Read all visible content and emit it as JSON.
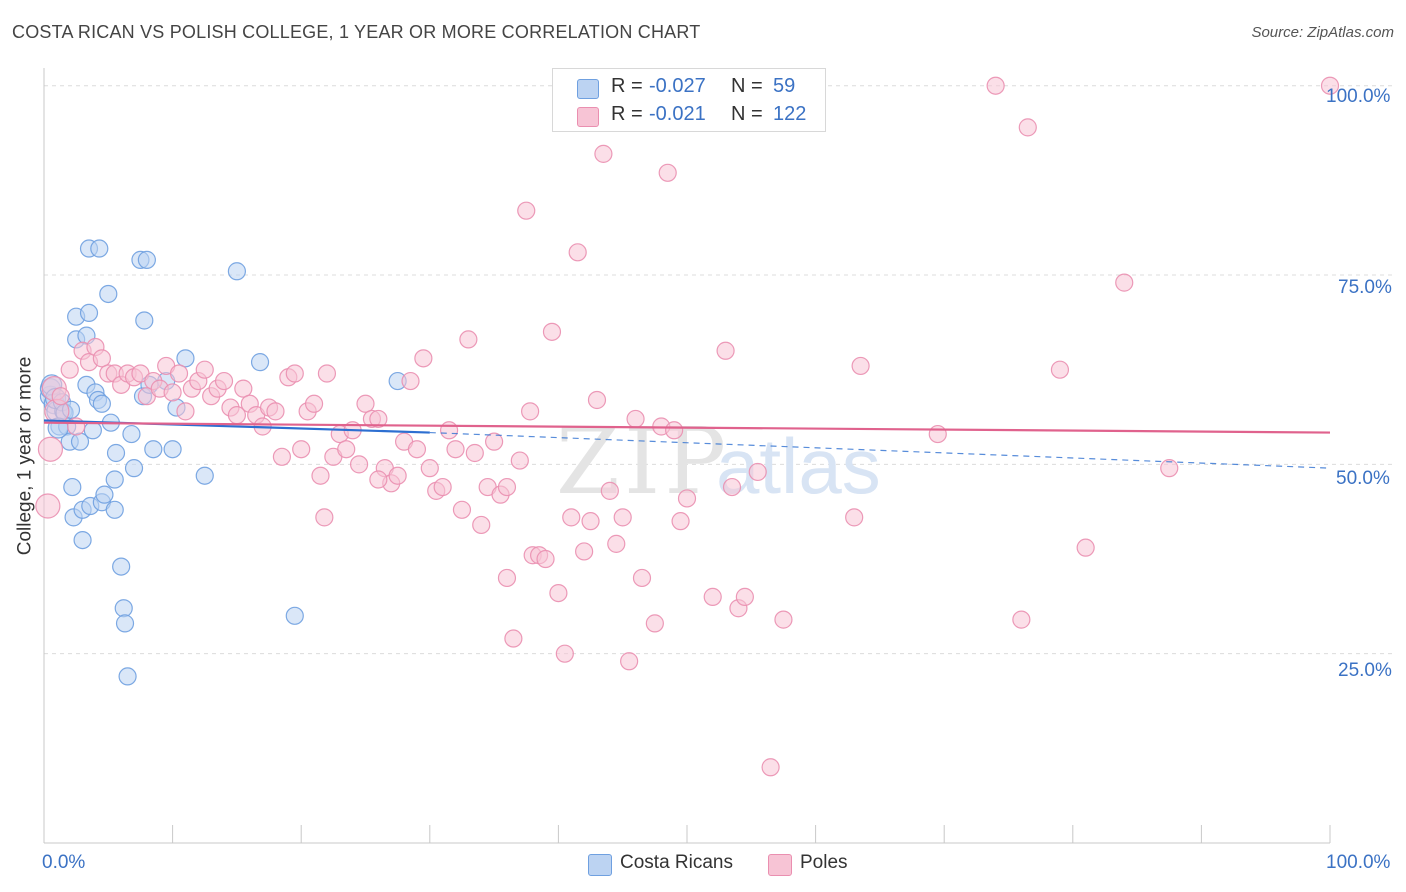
{
  "header": {
    "title": "COSTA RICAN VS POLISH COLLEGE, 1 YEAR OR MORE CORRELATION CHART",
    "source": "Source: ZipAtlas.com"
  },
  "legend": {
    "rows": [
      {
        "r_label": "R =",
        "r_value": "-0.027",
        "n_label": "N =",
        "n_value": "59"
      },
      {
        "r_label": "R =",
        "r_value": "-0.021",
        "n_label": "N =",
        "n_value": "122"
      }
    ]
  },
  "axis_labels": {
    "y_title": "College, 1 year or more",
    "x_min": "0.0%",
    "x_max": "100.0%",
    "y_ticks": [
      "100.0%",
      "75.0%",
      "50.0%",
      "25.0%"
    ]
  },
  "watermark": {
    "zip": "ZIP",
    "atlas": "atlas"
  },
  "colors": {
    "blue": "#6fa0e0",
    "blue_fill": "#bcd3f2",
    "blue_line": "#2d6fd1",
    "pink": "#ea8fb0",
    "pink_fill": "#f7c4d5",
    "pink_line": "#e0628d",
    "tick_text": "#3b72c4"
  },
  "chart_data": {
    "type": "scatter",
    "title": "COSTA RICAN VS POLISH COLLEGE, 1 YEAR OR MORE CORRELATION CHART",
    "xlabel": "",
    "ylabel": "College, 1 year or more",
    "xlim": [
      0,
      100
    ],
    "ylim": [
      0,
      102
    ],
    "x_ticks": [
      "0.0%",
      "100.0%"
    ],
    "y_ticks": [
      25,
      50,
      75,
      100
    ],
    "grid": true,
    "series": [
      {
        "name": "Costa Ricans",
        "r": -0.027,
        "n": 59,
        "trend": {
          "x": [
            0,
            30
          ],
          "y": [
            55.8,
            54.2
          ],
          "dashed_to": [
            100,
            49.5
          ]
        },
        "points": [
          [
            0.5,
            59
          ],
          [
            0.5,
            60
          ],
          [
            0.8,
            58
          ],
          [
            1,
            57
          ],
          [
            1.2,
            55
          ],
          [
            1.5,
            57
          ],
          [
            1.8,
            55
          ],
          [
            2,
            53
          ],
          [
            2.2,
            47
          ],
          [
            2.3,
            43
          ],
          [
            2.5,
            66.5
          ],
          [
            2.5,
            69.5
          ],
          [
            2.8,
            53
          ],
          [
            3,
            40
          ],
          [
            3,
            44
          ],
          [
            3.3,
            60.5
          ],
          [
            3.3,
            67
          ],
          [
            3.5,
            70
          ],
          [
            3.5,
            78.5
          ],
          [
            3.6,
            44.5
          ],
          [
            3.8,
            54.5
          ],
          [
            4,
            59.5
          ],
          [
            4.2,
            58.5
          ],
          [
            4.3,
            78.5
          ],
          [
            4.5,
            45
          ],
          [
            4.5,
            58
          ],
          [
            4.7,
            46
          ],
          [
            5,
            72.5
          ],
          [
            5.2,
            55.5
          ],
          [
            5.5,
            48
          ],
          [
            5.5,
            44
          ],
          [
            5.6,
            51.5
          ],
          [
            6,
            36.5
          ],
          [
            6.2,
            31
          ],
          [
            6.3,
            29
          ],
          [
            6.5,
            22
          ],
          [
            6.8,
            54
          ],
          [
            7,
            49.5
          ],
          [
            7.5,
            77
          ],
          [
            7.8,
            69
          ],
          [
            7.7,
            59
          ],
          [
            8,
            77
          ],
          [
            8.2,
            60.5
          ],
          [
            8.5,
            52
          ],
          [
            9.5,
            61
          ],
          [
            10,
            52
          ],
          [
            10.3,
            57.5
          ],
          [
            11,
            64
          ],
          [
            12.5,
            48.5
          ],
          [
            15,
            75.5
          ],
          [
            16.8,
            63.5
          ],
          [
            19.5,
            30
          ],
          [
            27.5,
            61
          ],
          [
            0.6,
            60.5
          ],
          [
            0.9,
            58.7
          ],
          [
            1.4,
            58.2
          ],
          [
            1.6,
            56.8
          ],
          [
            2.1,
            57.2
          ],
          [
            1.1,
            54.8
          ]
        ]
      },
      {
        "name": "Poles",
        "r": -0.021,
        "n": 122,
        "trend": {
          "x": [
            0,
            100
          ],
          "y": [
            55.5,
            54.2
          ]
        },
        "points": [
          [
            0.3,
            44.5
          ],
          [
            0.5,
            52
          ],
          [
            0.8,
            60
          ],
          [
            1,
            57
          ],
          [
            1.3,
            59
          ],
          [
            2,
            62.5
          ],
          [
            2.5,
            55
          ],
          [
            3,
            65
          ],
          [
            3.5,
            63.5
          ],
          [
            4,
            65.5
          ],
          [
            4.5,
            64
          ],
          [
            5,
            62
          ],
          [
            5.5,
            62
          ],
          [
            6,
            60.5
          ],
          [
            6.5,
            62
          ],
          [
            7,
            61.5
          ],
          [
            7.5,
            62
          ],
          [
            8,
            59
          ],
          [
            8.5,
            61
          ],
          [
            9,
            60
          ],
          [
            9.5,
            63
          ],
          [
            10,
            59.5
          ],
          [
            10.5,
            62
          ],
          [
            11,
            57
          ],
          [
            11.5,
            60
          ],
          [
            12,
            61
          ],
          [
            12.5,
            62.5
          ],
          [
            13,
            59
          ],
          [
            13.5,
            60
          ],
          [
            14,
            61
          ],
          [
            14.5,
            57.5
          ],
          [
            15,
            56.5
          ],
          [
            15.5,
            60
          ],
          [
            16,
            58
          ],
          [
            16.5,
            56.5
          ],
          [
            17,
            55
          ],
          [
            17.5,
            57.5
          ],
          [
            18,
            57
          ],
          [
            18.5,
            51
          ],
          [
            19,
            61.5
          ],
          [
            19.5,
            62
          ],
          [
            20,
            52
          ],
          [
            20.5,
            57
          ],
          [
            21,
            58
          ],
          [
            21.5,
            48.5
          ],
          [
            21.8,
            43
          ],
          [
            22,
            62
          ],
          [
            22.5,
            51
          ],
          [
            23,
            54
          ],
          [
            23.5,
            52
          ],
          [
            24,
            54.5
          ],
          [
            24.5,
            50
          ],
          [
            25,
            58
          ],
          [
            25.5,
            56
          ],
          [
            26,
            56
          ],
          [
            26.5,
            49.5
          ],
          [
            27,
            47.5
          ],
          [
            27.5,
            48.5
          ],
          [
            28,
            53
          ],
          [
            28.5,
            61
          ],
          [
            29,
            52
          ],
          [
            29.5,
            64
          ],
          [
            30,
            49.5
          ],
          [
            30.5,
            46.5
          ],
          [
            31,
            47
          ],
          [
            31.5,
            54.5
          ],
          [
            32,
            52
          ],
          [
            32.5,
            44
          ],
          [
            33,
            66.5
          ],
          [
            33.5,
            51.5
          ],
          [
            34,
            42
          ],
          [
            34.5,
            47
          ],
          [
            35,
            53
          ],
          [
            35.5,
            46
          ],
          [
            36,
            35
          ],
          [
            36.5,
            27
          ],
          [
            37,
            50.5
          ],
          [
            37.5,
            83.5
          ],
          [
            37.8,
            57
          ],
          [
            38,
            38
          ],
          [
            38.5,
            38
          ],
          [
            39,
            37.5
          ],
          [
            39.5,
            67.5
          ],
          [
            40,
            33
          ],
          [
            40.5,
            25
          ],
          [
            41,
            43
          ],
          [
            41.5,
            78
          ],
          [
            42,
            38.5
          ],
          [
            42.5,
            42.5
          ],
          [
            43,
            58.5
          ],
          [
            43.5,
            91
          ],
          [
            44,
            46.5
          ],
          [
            44.5,
            39.5
          ],
          [
            45,
            43
          ],
          [
            45.5,
            24
          ],
          [
            46,
            56
          ],
          [
            46.5,
            35
          ],
          [
            47.5,
            29
          ],
          [
            48,
            55
          ],
          [
            48.5,
            88.5
          ],
          [
            49,
            54.5
          ],
          [
            49.5,
            42.5
          ],
          [
            50,
            45.5
          ],
          [
            52,
            32.5
          ],
          [
            53,
            65
          ],
          [
            53.5,
            47
          ],
          [
            54,
            31
          ],
          [
            54.5,
            32.5
          ],
          [
            55.5,
            49
          ],
          [
            56.5,
            10
          ],
          [
            57.5,
            29.5
          ],
          [
            58,
            100
          ],
          [
            63,
            43
          ],
          [
            63.5,
            63
          ],
          [
            69.5,
            54
          ],
          [
            74,
            100
          ],
          [
            76,
            29.5
          ],
          [
            76.5,
            94.5
          ],
          [
            79,
            62.5
          ],
          [
            81,
            39
          ],
          [
            84,
            74
          ],
          [
            87.5,
            49.5
          ],
          [
            100,
            100
          ],
          [
            47.5,
            100
          ],
          [
            36,
            47
          ],
          [
            26,
            48
          ]
        ]
      }
    ]
  },
  "bottom_legend": [
    {
      "label": "Costa Ricans"
    },
    {
      "label": "Poles"
    }
  ]
}
